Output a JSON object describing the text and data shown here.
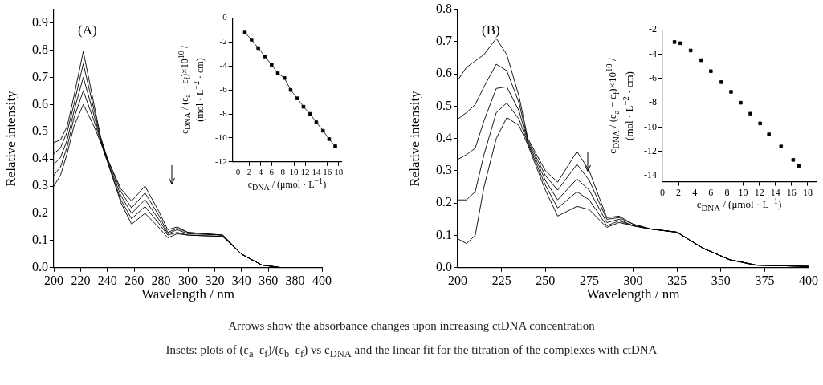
{
  "chart_data": [
    {
      "type": "line",
      "xlabel": "Wavelength / nm",
      "ylabel": "Relative intensity",
      "xlim": [
        200,
        400
      ],
      "xticks": [
        200,
        220,
        240,
        260,
        280,
        300,
        320,
        340,
        360,
        380,
        400
      ],
      "ylim": [
        0,
        0.95
      ],
      "yticks": [
        {
          "value": 0,
          "label": "0.0"
        },
        0.1,
        0.2,
        0.3,
        0.4,
        0.5,
        0.6,
        0.7,
        0.8,
        0.9
      ],
      "grid": false,
      "legend": false,
      "marker": "none",
      "line_style": "solid",
      "annotations": [
        "(A)"
      ],
      "x": [
        200,
        205,
        210,
        215,
        222,
        230,
        235,
        240,
        250,
        258,
        268,
        278,
        285,
        292,
        300,
        326,
        340,
        355,
        370,
        400
      ],
      "series": [
        {
          "color": "#000000",
          "values": [
            0.46,
            0.47,
            0.52,
            0.63,
            0.795,
            0.6,
            0.48,
            0.4,
            0.29,
            0.245,
            0.3,
            0.21,
            0.14,
            0.15,
            0.13,
            0.12,
            0.05,
            0.01,
            0,
            0
          ]
        },
        {
          "color": "#000000",
          "values": [
            0.42,
            0.44,
            0.5,
            0.6,
            0.75,
            0.58,
            0.475,
            0.4,
            0.28,
            0.22,
            0.275,
            0.195,
            0.13,
            0.145,
            0.13,
            0.12,
            0.05,
            0.01,
            0,
            0
          ]
        },
        {
          "color": "#000000",
          "values": [
            0.38,
            0.405,
            0.47,
            0.575,
            0.7,
            0.56,
            0.47,
            0.395,
            0.265,
            0.2,
            0.25,
            0.18,
            0.125,
            0.14,
            0.125,
            0.12,
            0.05,
            0.01,
            0,
            0
          ]
        },
        {
          "color": "#000000",
          "values": [
            0.34,
            0.37,
            0.445,
            0.55,
            0.65,
            0.54,
            0.465,
            0.39,
            0.25,
            0.18,
            0.225,
            0.165,
            0.12,
            0.13,
            0.12,
            0.115,
            0.05,
            0.01,
            0,
            0
          ]
        },
        {
          "color": "#000000",
          "values": [
            0.3,
            0.34,
            0.42,
            0.52,
            0.6,
            0.52,
            0.46,
            0.39,
            0.24,
            0.16,
            0.2,
            0.15,
            0.11,
            0.125,
            0.12,
            0.115,
            0.05,
            0.01,
            0,
            0
          ]
        }
      ]
    },
    {
      "type": "line",
      "xlabel": "c$_{DNA}$ / (μmol · L$^{−1}$)",
      "ylabel": "c$_{DNA}$ / (ε$_{a}$ − ε$_{f}$)×10$^{10}$ / (mol · L$^{−2}$ · cm)",
      "xlim": [
        -1,
        18.5
      ],
      "xticks": [
        0,
        2,
        4,
        6,
        8,
        10,
        12,
        14,
        16,
        18
      ],
      "ylim": [
        -12,
        0
      ],
      "yticks": [
        -12,
        -10,
        -8,
        -6,
        -4,
        -2,
        0
      ],
      "grid": false,
      "legend": false,
      "marker": "square",
      "line_style": "solid",
      "series": [
        {
          "color": "#000000",
          "x": [
            1.2,
            2.4,
            3.6,
            4.8,
            6,
            7.1,
            8.3,
            9.4,
            10.6,
            11.7,
            12.9,
            14,
            15.2,
            16.3,
            17.4
          ],
          "values": [
            -1.2,
            -1.8,
            -2.5,
            -3.2,
            -3.9,
            -4.6,
            -5.0,
            -6.0,
            -6.7,
            -7.4,
            -8.0,
            -8.7,
            -9.4,
            -10.1,
            -10.7
          ]
        }
      ]
    },
    {
      "type": "line",
      "xlabel": "Wavelength / nm",
      "ylabel": "Relative intensity",
      "xlim": [
        200,
        400
      ],
      "xticks": [
        200,
        225,
        250,
        275,
        300,
        325,
        350,
        375,
        400
      ],
      "ylim": [
        0,
        0.8
      ],
      "yticks": [
        {
          "value": 0,
          "label": "0.0"
        },
        0.1,
        0.2,
        0.3,
        0.4,
        0.5,
        0.6,
        0.7,
        0.8
      ],
      "grid": false,
      "legend": false,
      "marker": "none",
      "line_style": "solid",
      "annotations": [
        "(B)",
        "Arrows show the absorbance changes upon increasing ctDNA concentration",
        "Insets: plots of (ε$_{a}$–ε$_{f}$)/(ε$_{b}$–ε$_{f}$) vs c$_{DNA}$ and the linear fit for the titration of the complexes with ctDNA"
      ],
      "x": [
        200,
        205,
        210,
        215,
        222,
        228,
        235,
        240,
        250,
        257,
        268,
        275,
        285,
        292,
        300,
        310,
        325,
        340,
        355,
        370,
        400
      ],
      "series": [
        {
          "color": "#000000",
          "values": [
            0.58,
            0.62,
            0.64,
            0.66,
            0.71,
            0.66,
            0.53,
            0.4,
            0.3,
            0.265,
            0.36,
            0.3,
            0.155,
            0.16,
            0.135,
            0.12,
            0.11,
            0.06,
            0.025,
            0.008,
            0.004
          ]
        },
        {
          "color": "#000000",
          "values": [
            0.46,
            0.48,
            0.505,
            0.56,
            0.63,
            0.61,
            0.51,
            0.395,
            0.285,
            0.24,
            0.32,
            0.27,
            0.15,
            0.155,
            0.135,
            0.12,
            0.11,
            0.06,
            0.025,
            0.008,
            0.004
          ]
        },
        {
          "color": "#000000",
          "values": [
            0.335,
            0.35,
            0.37,
            0.455,
            0.555,
            0.56,
            0.485,
            0.39,
            0.27,
            0.21,
            0.275,
            0.24,
            0.14,
            0.15,
            0.13,
            0.12,
            0.11,
            0.06,
            0.025,
            0.008,
            0.004
          ]
        },
        {
          "color": "#000000",
          "values": [
            0.21,
            0.21,
            0.235,
            0.35,
            0.48,
            0.51,
            0.46,
            0.385,
            0.255,
            0.185,
            0.235,
            0.21,
            0.13,
            0.145,
            0.13,
            0.12,
            0.11,
            0.06,
            0.025,
            0.008,
            0.004
          ]
        },
        {
          "color": "#000000",
          "values": [
            0.09,
            0.075,
            0.1,
            0.25,
            0.4,
            0.465,
            0.44,
            0.38,
            0.24,
            0.16,
            0.19,
            0.18,
            0.125,
            0.14,
            0.13,
            0.12,
            0.11,
            0.06,
            0.025,
            0.008,
            0.004
          ]
        }
      ]
    },
    {
      "type": "scatter",
      "xlabel": "c$_{DNA}$ / (μmol · L$^{−1}$)",
      "ylabel": "c$_{DNA}$ / (ε$_{a}$ − ε$_{f}$)×10$^{10}$ / (mol · L$^{−2}$ · cm)",
      "xlim": [
        0,
        19
      ],
      "xticks": [
        0,
        2,
        4,
        6,
        8,
        10,
        12,
        14,
        16,
        18
      ],
      "ylim": [
        -14.5,
        -2
      ],
      "yticks": [
        -14,
        -12,
        -10,
        -8,
        -6,
        -4,
        -2
      ],
      "grid": false,
      "legend": false,
      "marker": "square",
      "series": [
        {
          "color": "#000000",
          "x": [
            1.5,
            2.2,
            3.5,
            4.8,
            6,
            7.3,
            8.5,
            9.7,
            10.9,
            12.1,
            13.2,
            14.7,
            16.2,
            16.9
          ],
          "values": [
            -3.0,
            -3.1,
            -3.7,
            -4.5,
            -5.4,
            -6.3,
            -7.1,
            -8.0,
            -8.9,
            -9.7,
            -10.6,
            -11.6,
            -12.7,
            -13.2
          ]
        }
      ]
    }
  ]
}
